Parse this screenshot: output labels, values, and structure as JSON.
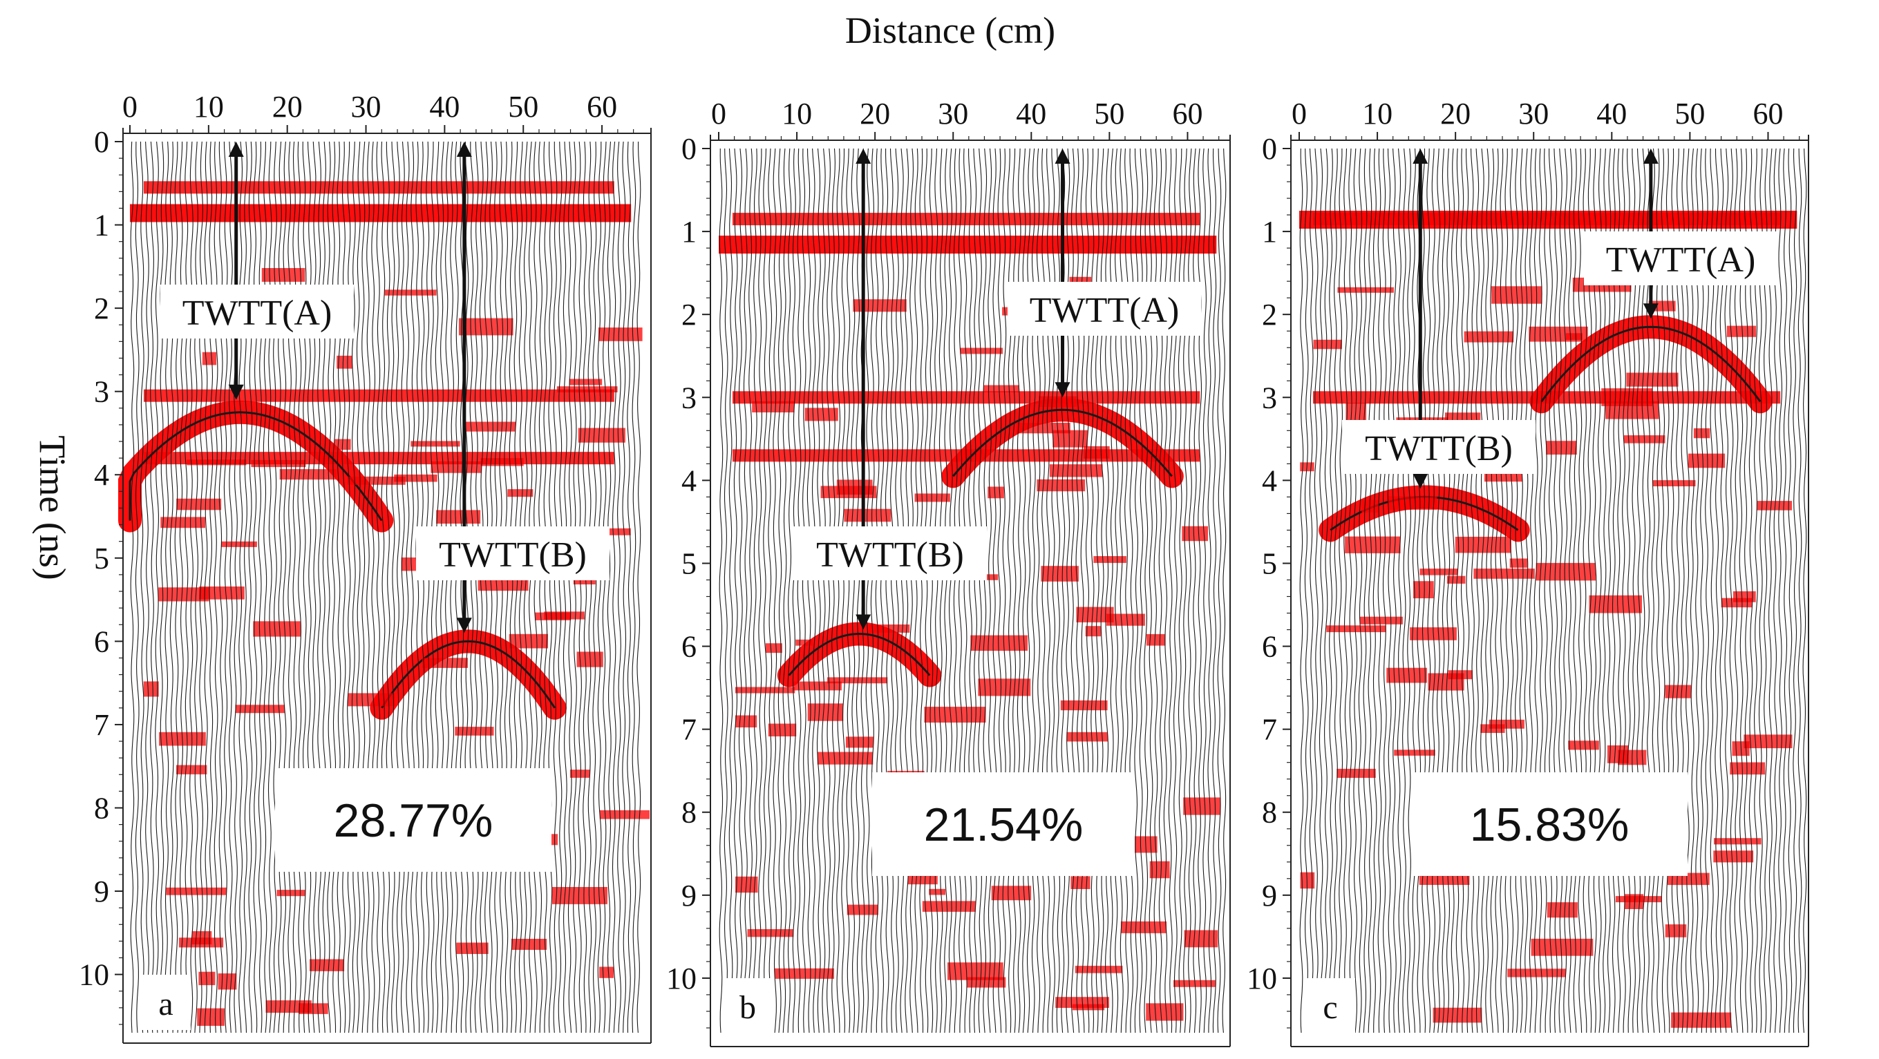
{
  "figure": {
    "x_axis_title": "Distance (cm)",
    "y_axis_title": "Time (ns)"
  },
  "colors": {
    "positive_fill": "#ff0000",
    "trace": "#1a1a1a",
    "axis": "#222222",
    "label_box": "#ffffff"
  },
  "chart_data": [
    {
      "type": "radargram",
      "panel": "a",
      "xlabel": "Distance (cm)",
      "ylabel": "Time (ns)",
      "xlim": [
        0,
        65
      ],
      "ylim": [
        0,
        10.7
      ],
      "x_ticks": [
        0,
        10,
        20,
        30,
        40,
        50,
        60
      ],
      "y_ticks": [
        0,
        1,
        2,
        3,
        4,
        5,
        6,
        7,
        8,
        9,
        10
      ],
      "moisture_label": "28.77%",
      "twtt_a_label": "TWTT(A)",
      "twtt_b_label": "TWTT(B)",
      "twtt_a": {
        "x_cm": 13.5,
        "t_ns": 3.1
      },
      "twtt_b": {
        "x_cm": 42.5,
        "t_ns": 5.9
      },
      "hyperbolas": [
        {
          "apex_x_cm": 14,
          "apex_t_ns": 3.25,
          "half_width_cm": 18,
          "depth_ns": 1.3
        },
        {
          "apex_x_cm": 43,
          "apex_t_ns": 6.0,
          "half_width_cm": 11,
          "depth_ns": 0.8
        }
      ],
      "horizontal_reflectors_ns": [
        0.55,
        3.05,
        3.8
      ],
      "surface_wave_ns": 0.85
    },
    {
      "type": "radargram",
      "panel": "b",
      "xlabel": "Distance (cm)",
      "ylabel": "Time (ns)",
      "xlim": [
        0,
        65
      ],
      "ylim": [
        0,
        10.7
      ],
      "x_ticks": [
        0,
        10,
        20,
        30,
        40,
        50,
        60
      ],
      "y_ticks": [
        0,
        1,
        2,
        3,
        4,
        5,
        6,
        7,
        8,
        9,
        10
      ],
      "moisture_label": "21.54%",
      "twtt_a_label": "TWTT(A)",
      "twtt_b_label": "TWTT(B)",
      "twtt_a": {
        "x_cm": 44,
        "t_ns": 3.0
      },
      "twtt_b": {
        "x_cm": 18.5,
        "t_ns": 5.8
      },
      "hyperbolas": [
        {
          "apex_x_cm": 44,
          "apex_t_ns": 3.15,
          "half_width_cm": 14,
          "depth_ns": 0.8
        },
        {
          "apex_x_cm": 18,
          "apex_t_ns": 5.85,
          "half_width_cm": 9,
          "depth_ns": 0.5
        }
      ],
      "horizontal_reflectors_ns": [
        0.85,
        3.0,
        3.7
      ],
      "surface_wave_ns": 1.15
    },
    {
      "type": "radargram",
      "panel": "c",
      "xlabel": "Distance (cm)",
      "ylabel": "Time (ns)",
      "xlim": [
        0,
        65
      ],
      "ylim": [
        0,
        10.7
      ],
      "x_ticks": [
        0,
        10,
        20,
        30,
        40,
        50,
        60
      ],
      "y_ticks": [
        0,
        1,
        2,
        3,
        4,
        5,
        6,
        7,
        8,
        9,
        10
      ],
      "moisture_label": "15.83%",
      "twtt_a_label": "TWTT(A)",
      "twtt_b_label": "TWTT(B)",
      "twtt_a": {
        "x_cm": 45,
        "t_ns": 2.05
      },
      "twtt_b": {
        "x_cm": 15.5,
        "t_ns": 4.1
      },
      "hyperbolas": [
        {
          "apex_x_cm": 45,
          "apex_t_ns": 2.15,
          "half_width_cm": 14,
          "depth_ns": 0.9
        },
        {
          "apex_x_cm": 16,
          "apex_t_ns": 4.2,
          "half_width_cm": 12,
          "depth_ns": 0.4
        }
      ],
      "horizontal_reflectors_ns": [
        0.85,
        3.0
      ],
      "surface_wave_ns": 0.85
    }
  ]
}
